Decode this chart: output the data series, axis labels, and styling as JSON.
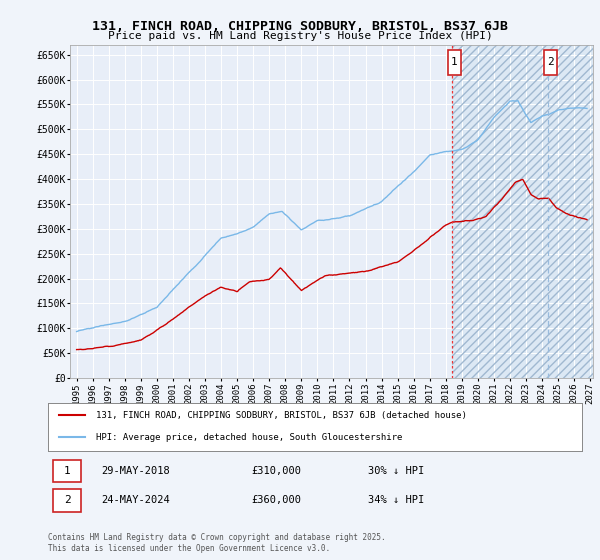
{
  "title_line1": "131, FINCH ROAD, CHIPPING SODBURY, BRISTOL, BS37 6JB",
  "title_line2": "Price paid vs. HM Land Registry's House Price Index (HPI)",
  "ylim": [
    0,
    670000
  ],
  "xlim_start": 1994.6,
  "xlim_end": 2027.2,
  "yticks": [
    0,
    50000,
    100000,
    150000,
    200000,
    250000,
    300000,
    350000,
    400000,
    450000,
    500000,
    550000,
    600000,
    650000
  ],
  "ytick_labels": [
    "£0",
    "£50K",
    "£100K",
    "£150K",
    "£200K",
    "£250K",
    "£300K",
    "£350K",
    "£400K",
    "£450K",
    "£500K",
    "£550K",
    "£600K",
    "£650K"
  ],
  "hpi_color": "#7ab8e8",
  "price_color": "#cc0000",
  "vline1_x": 2018.42,
  "vline2_x": 2024.4,
  "shade_start": 2018.42,
  "shade_end": 2027.2,
  "legend_entry1": "131, FINCH ROAD, CHIPPING SODBURY, BRISTOL, BS37 6JB (detached house)",
  "legend_entry2": "HPI: Average price, detached house, South Gloucestershire",
  "annotation1_date": "29-MAY-2018",
  "annotation1_price": "£310,000",
  "annotation1_hpi": "30% ↓ HPI",
  "annotation2_date": "24-MAY-2024",
  "annotation2_price": "£360,000",
  "annotation2_hpi": "34% ↓ HPI",
  "footer": "Contains HM Land Registry data © Crown copyright and database right 2025.\nThis data is licensed under the Open Government Licence v3.0.",
  "bg_color": "#f0f4fa",
  "plot_bg_color": "#e8eef8",
  "hatch_bg_color": "#dce8f4"
}
